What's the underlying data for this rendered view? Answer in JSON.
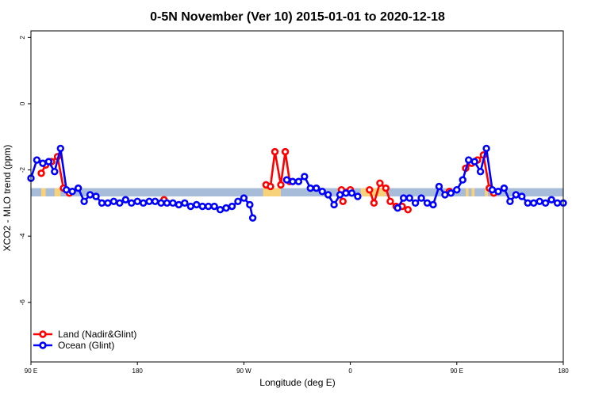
{
  "chart_data": {
    "type": "line",
    "title": "0-5N November (Ver 10)   2015-01-01 to 2020-12-18",
    "xlabel": "Longitude (deg E)",
    "ylabel": "XCO2 - MLO trend (ppm)",
    "xlim": [
      90,
      450
    ],
    "ylim": [
      -7.8,
      2.2
    ],
    "x_ticks": [
      {
        "value": 90,
        "label": "90 E"
      },
      {
        "value": 162,
        "label": "180"
      },
      {
        "value": 234,
        "label": "90 W"
      },
      {
        "value": 306,
        "label": "0"
      },
      {
        "value": 378,
        "label": "90 E"
      },
      {
        "value": 450,
        "label": "180"
      }
    ],
    "y_ticks": [
      {
        "value": 2,
        "label": "2"
      },
      {
        "value": 0,
        "label": "0"
      },
      {
        "value": -2,
        "label": "-2"
      },
      {
        "value": -4,
        "label": "-4"
      },
      {
        "value": -6,
        "label": "-6"
      }
    ],
    "band": {
      "y_low": -2.8,
      "y_high": -2.55,
      "color": "#a7bcd8",
      "land_color": "#f8d27a",
      "land_segments": [
        [
          97,
          100
        ],
        [
          106,
          110
        ],
        [
          247,
          259
        ],
        [
          300,
          302
        ],
        [
          313,
          330
        ],
        [
          371,
          373
        ],
        [
          384,
          386
        ],
        [
          388,
          390
        ],
        [
          397,
          399
        ]
      ]
    },
    "series": [
      {
        "name": "Land (Nadir&Glint)",
        "color": "#ff0000",
        "segments": [
          [
            [
              97,
              -2.1
            ],
            [
              100,
              -1.85
            ],
            [
              104,
              -1.75
            ],
            [
              108,
              -1.6
            ],
            [
              112,
              -2.55
            ],
            [
              116,
              -2.7
            ]
          ],
          [
            [
              180,
              -2.9
            ]
          ],
          [
            [
              249,
              -2.45
            ],
            [
              252,
              -2.5
            ],
            [
              255,
              -1.45
            ],
            [
              259,
              -2.45
            ],
            [
              262,
              -1.45
            ],
            [
              265,
              -2.35
            ]
          ],
          [
            [
              301,
              -2.95
            ]
          ],
          [
            [
              300,
              -2.6
            ],
            [
              306,
              -2.6
            ]
          ],
          [
            [
              319,
              -2.6
            ],
            [
              322,
              -3.0
            ],
            [
              326,
              -2.4
            ],
            [
              330,
              -2.55
            ],
            [
              333,
              -2.95
            ],
            [
              337,
              -3.1
            ],
            [
              341,
              -3.1
            ],
            [
              345,
              -3.2
            ]
          ],
          [
            [
              373,
              -2.65
            ]
          ],
          [
            [
              384,
              -1.95
            ],
            [
              388,
              -1.8
            ],
            [
              392,
              -1.7
            ],
            [
              396,
              -1.55
            ],
            [
              400,
              -2.55
            ],
            [
              403,
              -2.7
            ]
          ]
        ]
      },
      {
        "name": "Ocean (Glint)",
        "color": "#0000ff",
        "segments": [
          [
            [
              90,
              -2.25
            ],
            [
              94,
              -1.7
            ],
            [
              98,
              -1.8
            ],
            [
              102,
              -1.75
            ],
            [
              106,
              -2.05
            ],
            [
              110,
              -1.35
            ],
            [
              114,
              -2.6
            ],
            [
              118,
              -2.65
            ],
            [
              122,
              -2.55
            ],
            [
              126,
              -2.95
            ],
            [
              130,
              -2.75
            ],
            [
              134,
              -2.8
            ],
            [
              138,
              -3.0
            ],
            [
              142,
              -3.0
            ],
            [
              146,
              -2.95
            ],
            [
              150,
              -3.0
            ],
            [
              154,
              -2.9
            ],
            [
              158,
              -3.0
            ],
            [
              162,
              -2.95
            ],
            [
              166,
              -3.0
            ],
            [
              170,
              -2.95
            ],
            [
              174,
              -2.95
            ],
            [
              178,
              -3.0
            ],
            [
              182,
              -3.0
            ],
            [
              186,
              -3.0
            ],
            [
              190,
              -3.05
            ],
            [
              194,
              -3.0
            ],
            [
              198,
              -3.1
            ],
            [
              202,
              -3.05
            ],
            [
              206,
              -3.1
            ],
            [
              210,
              -3.1
            ],
            [
              214,
              -3.1
            ],
            [
              218,
              -3.2
            ],
            [
              222,
              -3.15
            ],
            [
              226,
              -3.1
            ],
            [
              230,
              -2.95
            ],
            [
              234,
              -2.85
            ],
            [
              238,
              -3.05
            ],
            [
              240,
              -3.45
            ]
          ],
          [
            [
              263,
              -2.3
            ],
            [
              267,
              -2.35
            ],
            [
              271,
              -2.35
            ],
            [
              275,
              -2.2
            ],
            [
              279,
              -2.55
            ],
            [
              283,
              -2.55
            ],
            [
              287,
              -2.65
            ],
            [
              291,
              -2.75
            ],
            [
              295,
              -3.05
            ],
            [
              299,
              -2.75
            ],
            [
              303,
              -2.7
            ],
            [
              307,
              -2.7
            ],
            [
              311,
              -2.8
            ]
          ],
          [
            [
              338,
              -3.15
            ],
            [
              342,
              -2.85
            ],
            [
              346,
              -2.85
            ],
            [
              350,
              -3.0
            ],
            [
              354,
              -2.85
            ],
            [
              358,
              -3.0
            ],
            [
              362,
              -3.05
            ],
            [
              366,
              -2.5
            ],
            [
              370,
              -2.75
            ],
            [
              374,
              -2.7
            ],
            [
              378,
              -2.6
            ],
            [
              382,
              -2.3
            ],
            [
              386,
              -1.7
            ],
            [
              390,
              -1.75
            ],
            [
              394,
              -2.05
            ],
            [
              398,
              -1.35
            ],
            [
              402,
              -2.6
            ],
            [
              406,
              -2.65
            ],
            [
              410,
              -2.55
            ],
            [
              414,
              -2.95
            ],
            [
              418,
              -2.75
            ],
            [
              422,
              -2.8
            ],
            [
              426,
              -3.0
            ],
            [
              430,
              -3.0
            ],
            [
              434,
              -2.95
            ],
            [
              438,
              -3.0
            ],
            [
              442,
              -2.9
            ],
            [
              446,
              -3.0
            ],
            [
              450,
              -3.0
            ]
          ]
        ]
      }
    ],
    "legend": {
      "placement": "bottom-left",
      "entries": [
        "Land (Nadir&Glint)",
        "Ocean (Glint)"
      ]
    }
  }
}
